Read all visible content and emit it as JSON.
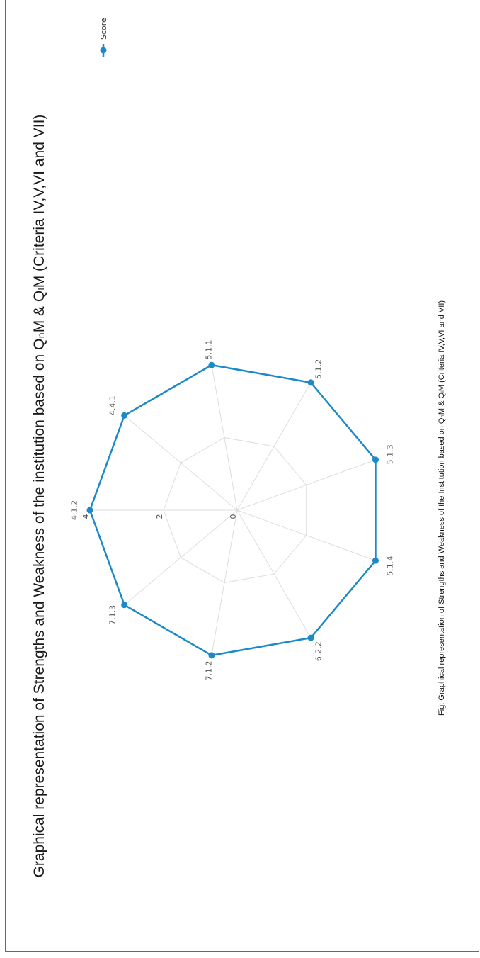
{
  "title": "Graphical representation of Strengths and Weakness of the institution based on QₙM & QₗM (Criteria IV,V,VI and VII)",
  "caption": "Fig: Graphical representation of Strengths and Weakness of the Institution based on QₙM & QₗM (Criteria IV,V,VI and VII)",
  "colors": {
    "series": "#1b8ac7",
    "grid": "#dddddd"
  },
  "chart_data": {
    "type": "radar",
    "categories": [
      "4.1.2",
      "4.4.1",
      "5.1.1",
      "5.1.2",
      "5.1.3",
      "5.1.4",
      "6.2.2",
      "7.1.2",
      "7.1.3"
    ],
    "series": [
      {
        "name": "Score",
        "values": [
          4,
          4,
          4,
          4,
          4,
          4,
          4,
          4,
          4
        ]
      }
    ],
    "ticks": [
      0,
      2,
      4
    ],
    "rlim": [
      0,
      4
    ],
    "legend": "top-right",
    "grid": true
  }
}
